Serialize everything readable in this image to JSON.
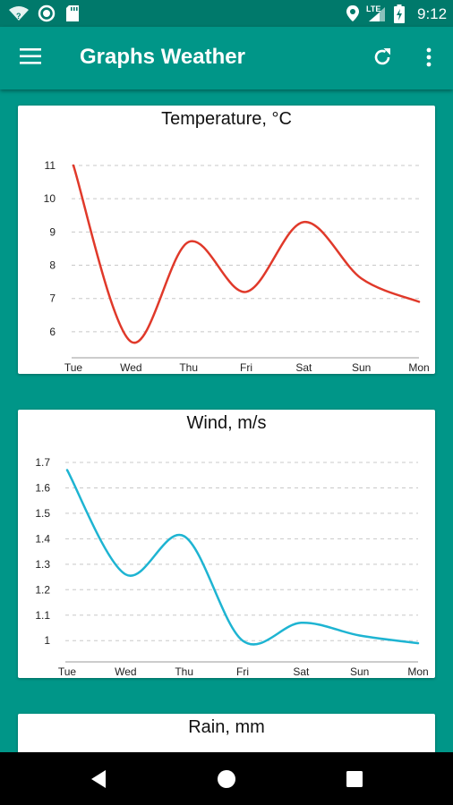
{
  "status_bar": {
    "time": "9:12",
    "network": "LTE",
    "wifi_badge": "?",
    "icons": [
      "wifi-icon",
      "record-icon",
      "sd-card-icon",
      "location-icon",
      "signal-icon",
      "battery-charging-icon"
    ]
  },
  "app_bar": {
    "title": "Graphs Weather",
    "icons": [
      "menu-icon",
      "refresh-icon",
      "more-vert-icon"
    ]
  },
  "colors": {
    "primary": "#009688",
    "primary_dark": "#00796b",
    "temperature_line": "#e0392a",
    "wind_line": "#1eb4d2"
  },
  "chart_data": [
    {
      "type": "line",
      "title": "Temperature, °C",
      "categories": [
        "Tue",
        "Wed",
        "Thu",
        "Fri",
        "Sat",
        "Sun",
        "Mon"
      ],
      "yticks": [
        11,
        10,
        9,
        8,
        7,
        6
      ],
      "ylim": [
        5.2,
        11
      ],
      "grid": true,
      "series": [
        {
          "values": [
            11,
            5.7,
            8.7,
            7.2,
            9.3,
            7.6,
            6.9
          ]
        }
      ]
    },
    {
      "type": "line",
      "title": "Wind, m/s",
      "categories": [
        "Tue",
        "Wed",
        "Thu",
        "Fri",
        "Sat",
        "Sun",
        "Mon"
      ],
      "yticks": [
        1.7,
        1.6,
        1.5,
        1.4,
        1.3,
        1.2,
        1.1,
        1
      ],
      "ylim": [
        0.92,
        1.7
      ],
      "grid": true,
      "series": [
        {
          "values": [
            1.67,
            1.26,
            1.41,
            1.0,
            1.07,
            1.02,
            0.99
          ]
        }
      ]
    },
    {
      "type": "line",
      "title": "Rain, mm"
    }
  ],
  "nav_bar": {
    "icons": [
      "back-icon",
      "home-icon",
      "recents-icon"
    ]
  }
}
